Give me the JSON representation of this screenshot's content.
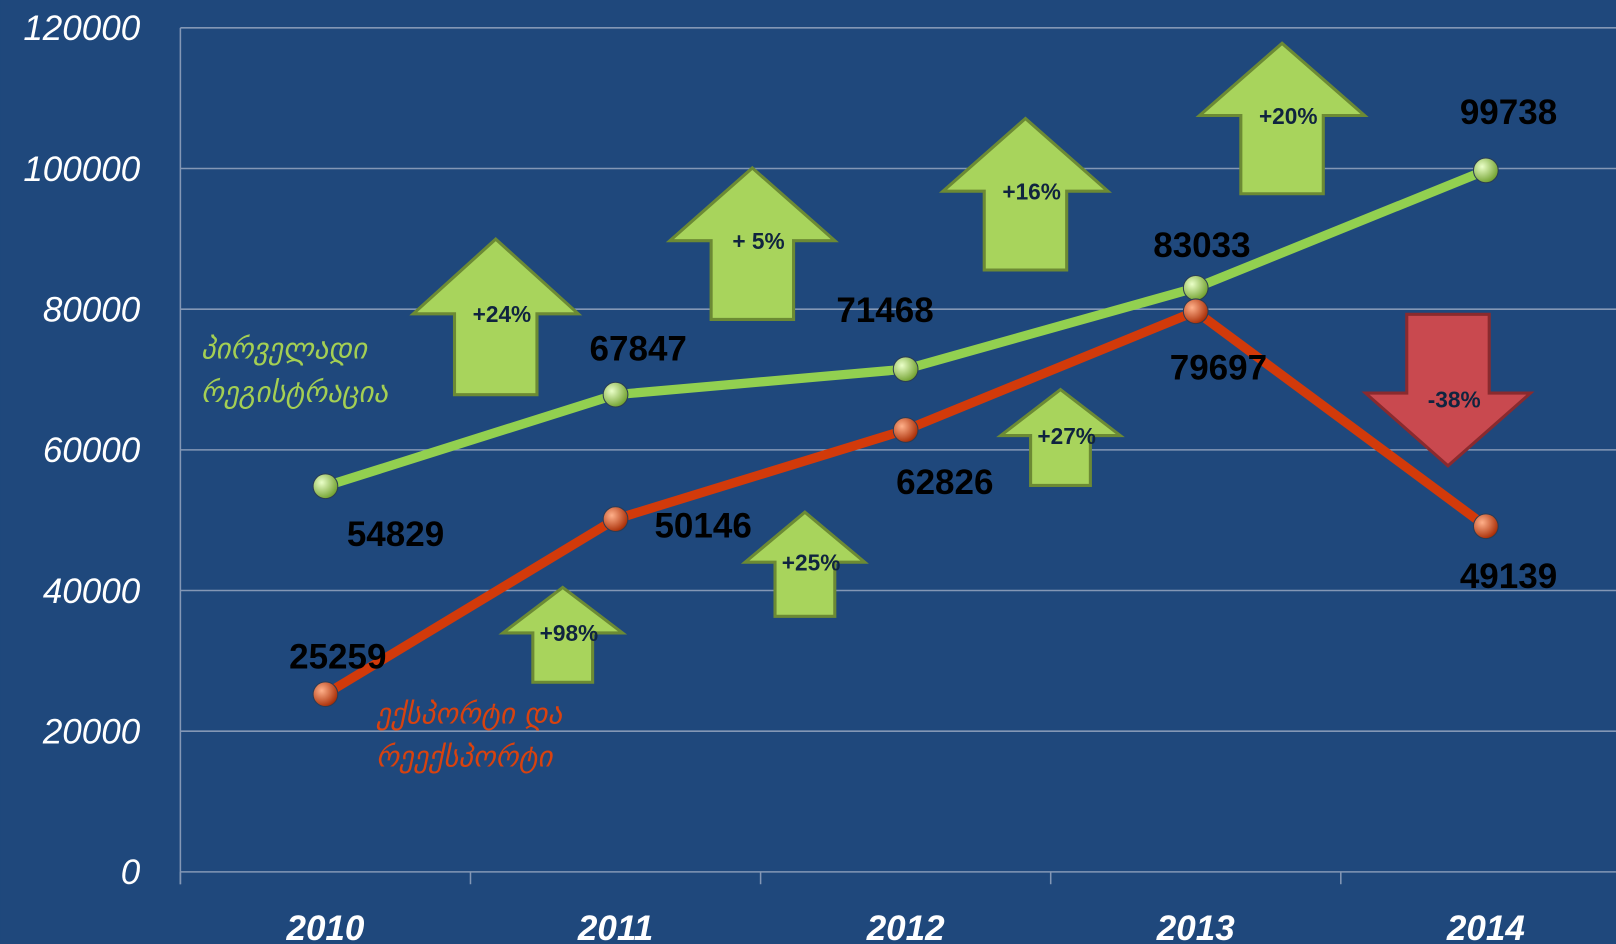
{
  "chart_data": {
    "type": "line",
    "categories": [
      "2010",
      "2011",
      "2012",
      "2013",
      "2014"
    ],
    "series": [
      {
        "name": "პირველადი რეგისტრაცია",
        "color": "#92d050",
        "values": [
          54829,
          67847,
          71468,
          83033,
          99738
        ]
      },
      {
        "name": "ექსპორტი და რეექსპორტი",
        "color": "#d23a0a",
        "values": [
          25259,
          50146,
          62826,
          79697,
          49139
        ]
      }
    ],
    "ylim": [
      0,
      120000
    ],
    "yticks": [
      0,
      20000,
      40000,
      60000,
      80000,
      100000,
      120000
    ],
    "grid": true,
    "annotations": [
      {
        "text": "+24%",
        "direction": "up",
        "color": "#a8d45c"
      },
      {
        "text": "+ 5%",
        "direction": "up",
        "color": "#a8d45c"
      },
      {
        "text": "+16%",
        "direction": "up",
        "color": "#a8d45c"
      },
      {
        "text": "+20%",
        "direction": "up",
        "color": "#a8d45c"
      },
      {
        "text": "+98%",
        "direction": "up",
        "color": "#a8d45c"
      },
      {
        "text": "+25%",
        "direction": "up",
        "color": "#a8d45c"
      },
      {
        "text": "+27%",
        "direction": "up",
        "color": "#a8d45c"
      },
      {
        "text": "-38%",
        "direction": "down",
        "color": "#c9494f"
      }
    ]
  }
}
